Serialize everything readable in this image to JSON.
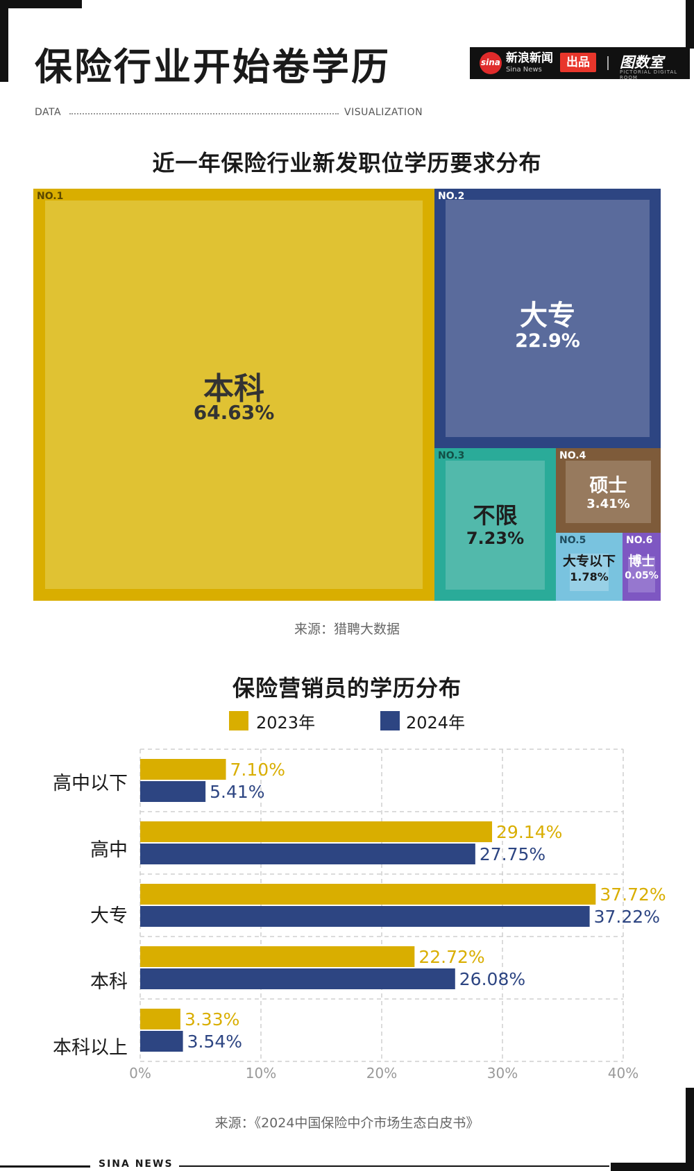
{
  "header": {
    "title": "保险行业开始卷学历",
    "data_tag": "DATA",
    "vis_tag": "VISUALIZATION",
    "brand": {
      "sina_logo": "sina",
      "sina_name": "新浪新闻",
      "sina_sub": "Sina News",
      "chupin": "出品",
      "room_name": "图数室",
      "room_sub": "PICTORIAL DIGITAL ROOM"
    }
  },
  "colors": {
    "yellow": "#d9ae00",
    "navy": "#2d4582",
    "teal": "#2aab99",
    "brown": "#7e5b3a",
    "lightblue": "#79c3df",
    "purple": "#7e57c2"
  },
  "chart_data": [
    {
      "type": "treemap",
      "title": "近一年保险行业新发职位学历要求分布",
      "items": [
        {
          "rank": "NO.1",
          "name": "本科",
          "value": 64.63,
          "label": "64.63%"
        },
        {
          "rank": "NO.2",
          "name": "大专",
          "value": 22.9,
          "label": "22.9%"
        },
        {
          "rank": "NO.3",
          "name": "不限",
          "value": 7.23,
          "label": "7.23%"
        },
        {
          "rank": "NO.4",
          "name": "硕士",
          "value": 3.41,
          "label": "3.41%"
        },
        {
          "rank": "NO.5",
          "name": "大专以下",
          "value": 1.78,
          "label": "1.78%"
        },
        {
          "rank": "NO.6",
          "name": "博士",
          "value": 0.05,
          "label": "0.05%"
        }
      ],
      "source": "来源：猎聘大数据"
    },
    {
      "type": "bar",
      "orientation": "horizontal",
      "title": "保险营销员的学历分布",
      "categories": [
        "高中以下",
        "高中",
        "大专",
        "本科",
        "本科以上"
      ],
      "series": [
        {
          "name": "2023年",
          "color": "#d9ae00",
          "values": [
            7.1,
            29.14,
            37.72,
            22.72,
            3.33
          ],
          "labels": [
            "7.10%",
            "29.14%",
            "37.72%",
            "22.72%",
            "3.33%"
          ]
        },
        {
          "name": "2024年",
          "color": "#2d4582",
          "values": [
            5.41,
            27.75,
            37.22,
            26.08,
            3.54
          ],
          "labels": [
            "5.41%",
            "27.75%",
            "37.22%",
            "26.08%",
            "3.54%"
          ]
        }
      ],
      "xlim": [
        0,
        40
      ],
      "xticks": [
        "0%",
        "10%",
        "20%",
        "30%",
        "40%"
      ],
      "grid": true,
      "legend_position": "top",
      "source": "来源：《2024中国保险中介市场生态白皮书》"
    }
  ],
  "footer": {
    "text": "SINA NEWS"
  }
}
